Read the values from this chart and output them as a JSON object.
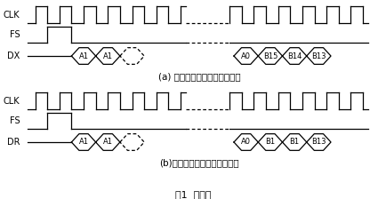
{
  "title": "图1  时序图",
  "section_a_label": "(a) 内部帧同步的连续发送模式",
  "section_b_label": "(b)外部帧同步的连续接收模式",
  "signals_a": [
    "CLK",
    "FS",
    "DX"
  ],
  "signals_b": [
    "CLK",
    "FS",
    "DR"
  ],
  "clk_color": "#000000",
  "signal_color": "#000000",
  "bg_color": "#ffffff",
  "font_size": 7,
  "label_font_size": 7.5,
  "title_font_size": 8
}
